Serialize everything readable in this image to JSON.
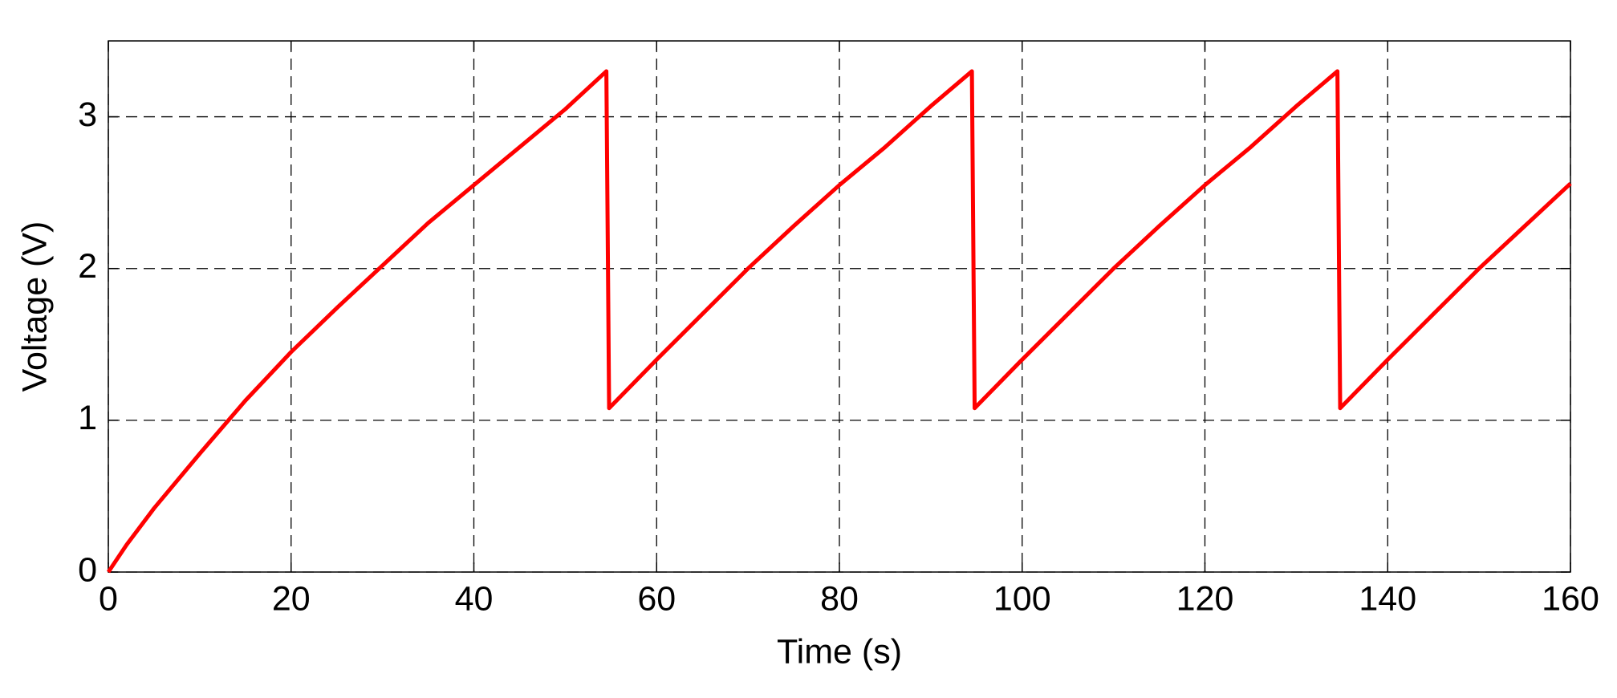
{
  "chart_data": {
    "type": "line",
    "xlabel": "Time (s)",
    "ylabel": "Voltage (V)",
    "x": [
      0,
      2,
      5,
      10,
      15,
      20,
      25,
      30,
      35,
      40,
      45,
      50,
      54.5,
      54.8,
      60,
      65,
      70,
      75,
      80,
      85,
      90,
      94.5,
      94.8,
      100,
      105,
      110,
      115,
      120,
      125,
      130,
      134.5,
      134.8,
      140,
      145,
      150,
      155,
      160
    ],
    "series": [
      {
        "name": "Voltage",
        "color": "#ff0000",
        "values": [
          0,
          0.18,
          0.42,
          0.78,
          1.13,
          1.45,
          1.74,
          2.02,
          2.3,
          2.55,
          2.8,
          3.05,
          3.3,
          1.08,
          1.4,
          1.7,
          2.0,
          2.28,
          2.55,
          2.8,
          3.07,
          3.3,
          1.08,
          1.4,
          1.7,
          2.0,
          2.28,
          2.55,
          2.8,
          3.07,
          3.3,
          1.08,
          1.4,
          1.7,
          2.0,
          2.28,
          2.56
        ]
      }
    ],
    "xlim": [
      0,
      160
    ],
    "ylim": [
      0,
      3.5
    ],
    "xticks": [
      0,
      20,
      40,
      60,
      80,
      100,
      120,
      140,
      160
    ],
    "yticks": [
      0,
      1,
      2,
      3
    ],
    "grid": true
  }
}
